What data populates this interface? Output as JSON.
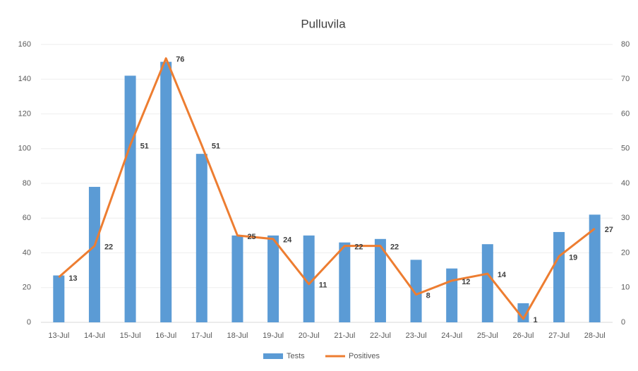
{
  "chart_data": {
    "type": "combo",
    "title": "Pulluvila",
    "categories": [
      "13-Jul",
      "14-Jul",
      "15-Jul",
      "16-Jul",
      "17-Jul",
      "18-Jul",
      "19-Jul",
      "20-Jul",
      "21-Jul",
      "22-Jul",
      "23-Jul",
      "24-Jul",
      "25-Jul",
      "26-Jul",
      "27-Jul",
      "28-Jul"
    ],
    "series": [
      {
        "name": "Tests",
        "type": "bar",
        "color": "#5b9bd5",
        "values": [
          27,
          78,
          142,
          150,
          97,
          50,
          50,
          50,
          46,
          48,
          36,
          31,
          45,
          11,
          52,
          62
        ]
      },
      {
        "name": "Positives",
        "type": "line",
        "axis": "y2",
        "color": "#ed7d31",
        "data_labels": true,
        "values": [
          13,
          22,
          51,
          76,
          51,
          25,
          24,
          11,
          22,
          22,
          8,
          12,
          14,
          1,
          19,
          27
        ]
      }
    ],
    "ylim": [
      0,
      160
    ],
    "yticks": [
      0,
      20,
      40,
      60,
      80,
      100,
      120,
      140,
      160
    ],
    "y2lim": [
      0,
      80
    ],
    "y2ticks": [
      0,
      10,
      20,
      30,
      40,
      50,
      60,
      70,
      80
    ],
    "grid": true,
    "legend": "bottom"
  }
}
